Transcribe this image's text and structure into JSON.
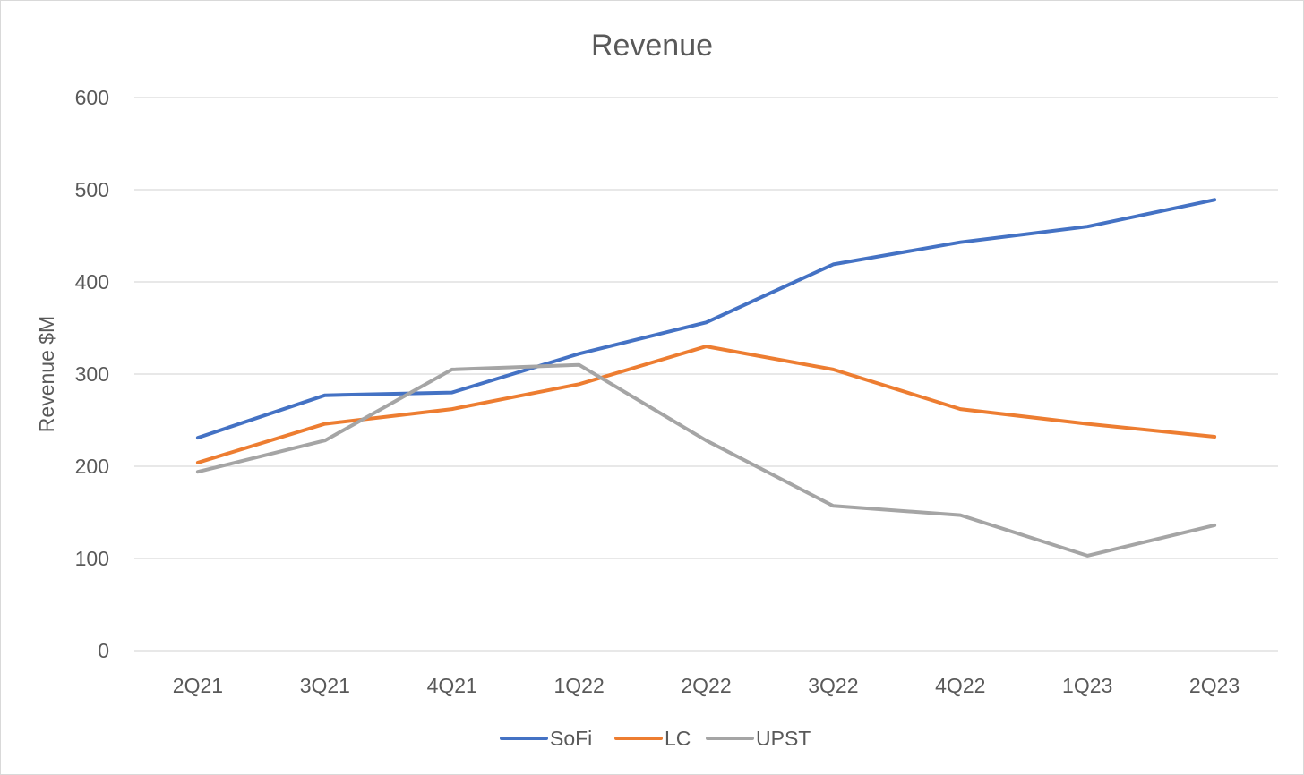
{
  "chart_data": {
    "type": "line",
    "title": "Revenue",
    "xlabel": "",
    "ylabel": "Revenue $M",
    "ylim": [
      0,
      600
    ],
    "yticks": [
      "0",
      "100",
      "200",
      "300",
      "400",
      "500",
      "600"
    ],
    "grid": true,
    "legend_position": "bottom",
    "categories": [
      "2Q21",
      "3Q21",
      "4Q21",
      "1Q22",
      "2Q22",
      "3Q22",
      "4Q22",
      "1Q23",
      "2Q23"
    ],
    "series": [
      {
        "name": "SoFi",
        "color": "#4472C4",
        "values": [
          231,
          277,
          280,
          322,
          356,
          419,
          443,
          460,
          489
        ]
      },
      {
        "name": "LC",
        "color": "#ED7D31",
        "values": [
          204,
          246,
          262,
          289,
          330,
          305,
          262,
          246,
          232
        ]
      },
      {
        "name": "UPST",
        "color": "#A5A5A5",
        "values": [
          194,
          228,
          305,
          310,
          228,
          157,
          147,
          103,
          136
        ]
      }
    ]
  }
}
